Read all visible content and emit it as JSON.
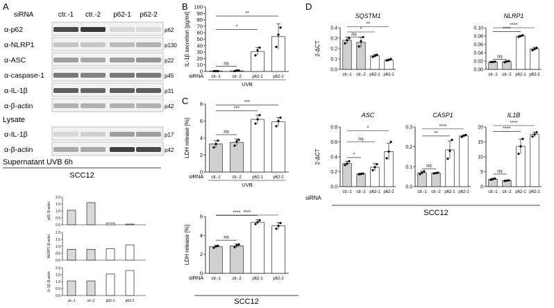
{
  "panels": {
    "A": {
      "letter": "A",
      "header": {
        "prefix": "siRNA",
        "lanes": [
          "ctr.-1",
          "ctr.-2",
          "p62-1",
          "p62-2"
        ]
      },
      "lysate_blots": [
        {
          "label": "α-p62",
          "size": "p62",
          "bands": [
            0.85,
            0.95,
            0.1,
            0.08
          ]
        },
        {
          "label": "α-NLRP1",
          "size": "p130",
          "bands": [
            0.2,
            0.2,
            0.25,
            0.3
          ]
        },
        {
          "label": "α-ASC",
          "size": "p22",
          "bands": [
            0.4,
            0.35,
            0.4,
            0.45
          ]
        },
        {
          "label": "α-caspase-1",
          "size": "p45",
          "bands": [
            0.6,
            0.55,
            0.6,
            0.6
          ]
        },
        {
          "label": "α-IL-1β",
          "size": "p31",
          "bands": [
            0.75,
            0.7,
            0.75,
            0.75
          ]
        },
        {
          "label": "α-β-actin",
          "size": "p42",
          "bands": [
            0.3,
            0.3,
            0.3,
            0.3
          ]
        }
      ],
      "lysate_caption": "Lysate",
      "supernatant_blots": [
        {
          "label": "α-IL-1β",
          "size": "p17",
          "bands": [
            0.1,
            0.15,
            0.4,
            0.4
          ]
        },
        {
          "label": "α-β-actin",
          "size": "p42",
          "bands": [
            0.35,
            0.35,
            0.9,
            0.85
          ]
        }
      ],
      "supernatant_caption": "Supernatant UVB 6h",
      "cell_line": "SCC12",
      "quant_charts": [
        {
          "ylabel": "p62 /β-actin",
          "ylim": [
            0,
            2
          ],
          "ticks": [
            "2.0",
            "1.5",
            "1.0",
            "0.5",
            "0.0"
          ],
          "values": [
            1.05,
            1.6,
            0.12,
            0.05
          ]
        },
        {
          "ylabel": "NLRP1 /β-actin",
          "ylim": [
            0,
            2
          ],
          "ticks": [
            "2.0",
            "1.5",
            "1.0",
            "0.5",
            "0.0"
          ],
          "values": [
            0.78,
            0.78,
            0.82,
            1.1
          ]
        },
        {
          "ylabel": "IL-1β /β-actin",
          "ylim": [
            0,
            2
          ],
          "ticks": [
            "2.0",
            "1.5",
            "1.0",
            "0.5",
            "0.0"
          ],
          "values": [
            1.05,
            1.05,
            1.55,
            1.8
          ]
        }
      ],
      "quant_categories": [
        "ctr.-1",
        "ctr.-2",
        "p62-1",
        "p62-2"
      ]
    },
    "B": {
      "letter": "B"
    },
    "C": {
      "letter": "C"
    },
    "D": {
      "letter": "D",
      "siRNA_label": "siRNA",
      "cell_line": "SCC12"
    }
  },
  "chart_data": [
    {
      "id": "B",
      "type": "bar",
      "ylabel": "IL-1β secretion [pg/ml]",
      "ylim": [
        0,
        100
      ],
      "ticks": [
        0,
        10,
        20,
        30,
        40,
        50,
        60,
        70,
        80,
        90,
        100
      ],
      "categories": [
        "ctr.-1",
        "ctr.-2",
        "p62-1",
        "p62-2"
      ],
      "values": [
        0.5,
        1,
        31,
        54
      ],
      "errors": [
        0.5,
        1,
        6,
        20
      ],
      "points": [
        [
          0.5,
          0.5,
          0.5
        ],
        [
          0.5,
          1.5,
          1.5
        ],
        [
          25,
          33,
          37
        ],
        [
          38,
          57,
          68
        ]
      ],
      "siRNA_label": "siRNA",
      "group_label": "UVB",
      "sig": [
        {
          "from": 0,
          "to": 3,
          "text": "**",
          "y": 86
        },
        {
          "from": 0,
          "to": 2,
          "text": "*",
          "y": 65
        },
        {
          "from": 0,
          "to": 1,
          "text": "ns",
          "y": 8
        }
      ]
    },
    {
      "id": "C1",
      "type": "bar",
      "ylabel": "LDH release [%]",
      "ylim": [
        0,
        8
      ],
      "ticks": [
        0,
        2,
        4,
        6,
        8
      ],
      "categories": [
        "ctr.-1",
        "ctr.-2",
        "p62-1",
        "p62-2"
      ],
      "values": [
        3.3,
        3.5,
        6.2,
        5.9
      ],
      "errors": [
        0.4,
        0.4,
        0.5,
        0.5
      ],
      "points": [
        [
          2.9,
          3.3,
          3.7
        ],
        [
          3.1,
          3.6,
          3.8
        ],
        [
          5.7,
          6.2,
          6.7
        ],
        [
          5.4,
          6.0,
          6.4
        ]
      ],
      "siRNA_label": "siRNA",
      "group_label": "UVB",
      "sig": [
        {
          "from": 0,
          "to": 3,
          "text": "***",
          "y": 7.9
        },
        {
          "from": 0,
          "to": 2,
          "text": "***",
          "y": 7.2
        },
        {
          "from": 0,
          "to": 1,
          "text": "ns",
          "y": 4.4
        }
      ]
    },
    {
      "id": "C2",
      "type": "bar",
      "ylabel": "LDH release [%]",
      "ylim": [
        0,
        6
      ],
      "ticks": [
        0,
        2,
        4,
        6
      ],
      "categories": [
        "ctr.-1",
        "ctr.-2",
        "p62-1",
        "p62-2"
      ],
      "values": [
        2.8,
        2.9,
        5.4,
        5.0
      ],
      "errors": [
        0.15,
        0.2,
        0.25,
        0.35
      ],
      "points": [
        [
          2.7,
          2.85,
          2.9
        ],
        [
          2.75,
          2.95,
          3.05
        ],
        [
          5.2,
          5.4,
          5.6
        ],
        [
          4.7,
          5.0,
          5.3
        ]
      ],
      "siRNA_label": "siRNA",
      "group_label": "",
      "sig": [
        {
          "from": 0,
          "to": 3,
          "text": "****",
          "y": 6.9
        },
        {
          "from": 0,
          "to": 2,
          "text": "****",
          "y": 6.1
        },
        {
          "from": 0,
          "to": 1,
          "text": "ns",
          "y": 3.5
        }
      ]
    },
    {
      "id": "SQSTM1",
      "type": "bar",
      "title": "SQSTM1",
      "ylabel": "2-ΔCT",
      "ylim": [
        0,
        0.4
      ],
      "ticks": [
        "0.0",
        "0.1",
        "0.2",
        "0.3",
        "0.4"
      ],
      "categories": [
        "ctr.-1",
        "ctr.-2",
        "p62-1",
        "p62-2"
      ],
      "values": [
        0.28,
        0.26,
        0.13,
        0.09
      ],
      "errors": [
        0.03,
        0.05,
        0.015,
        0.01
      ],
      "points": [
        [
          0.25,
          0.28,
          0.3
        ],
        [
          0.22,
          0.27,
          0.31
        ],
        [
          0.12,
          0.13,
          0.14
        ],
        [
          0.085,
          0.09,
          0.1
        ]
      ],
      "sig": [
        {
          "from": 0,
          "to": 3,
          "text": "**",
          "y": 0.41
        },
        {
          "from": 0,
          "to": 2,
          "text": "*",
          "y": 0.36
        },
        {
          "from": 0,
          "to": 1,
          "text": "ns",
          "y": 0.31
        }
      ]
    },
    {
      "id": "NLRP1",
      "type": "bar",
      "title": "NLRP1",
      "ylabel": "",
      "ylim": [
        0,
        0.1
      ],
      "ticks": [
        "0.00",
        "0.02",
        "0.04",
        "0.06",
        "0.08",
        "0.10"
      ],
      "categories": [
        "ctr.-1",
        "ctr.-2",
        "p62-1",
        "p62-2"
      ],
      "values": [
        0.018,
        0.019,
        0.08,
        0.049
      ],
      "errors": [
        0.001,
        0.002,
        0.002,
        0.004
      ],
      "points": [
        [
          0.0175,
          0.018,
          0.0185
        ],
        [
          0.017,
          0.019,
          0.02
        ],
        [
          0.078,
          0.08,
          0.082
        ],
        [
          0.046,
          0.049,
          0.052
        ]
      ],
      "sig": [
        {
          "from": 0,
          "to": 3,
          "text": "****",
          "y": 0.1
        },
        {
          "from": 0,
          "to": 2,
          "text": "****",
          "y": 0.091
        },
        {
          "from": 0,
          "to": 1,
          "text": "ns",
          "y": 0.024
        }
      ]
    },
    {
      "id": "ASC",
      "type": "bar",
      "title": "ASC",
      "ylabel": "2-ΔCT",
      "ylim": [
        0,
        0.8
      ],
      "ticks": [
        "0.0",
        "0.2",
        "0.4",
        "0.6",
        "0.8"
      ],
      "categories": [
        "ctr.-1",
        "ctr.-2",
        "p62-1",
        "p62-2"
      ],
      "values": [
        0.31,
        0.17,
        0.26,
        0.47
      ],
      "errors": [
        0.03,
        0.01,
        0.05,
        0.11
      ],
      "points": [
        [
          0.29,
          0.31,
          0.34
        ],
        [
          0.165,
          0.17,
          0.175
        ],
        [
          0.22,
          0.26,
          0.3
        ],
        [
          0.38,
          0.47,
          0.6
        ]
      ],
      "sig": [
        {
          "from": 0,
          "to": 3,
          "text": "*",
          "y": 0.75
        },
        {
          "from": 0,
          "to": 2,
          "text": "ns",
          "y": 0.6
        },
        {
          "from": 0,
          "to": 1,
          "text": "*",
          "y": 0.39
        }
      ]
    },
    {
      "id": "CASP1",
      "type": "bar",
      "title": "CASP1",
      "ylabel": "",
      "ylim": [
        0,
        0.3
      ],
      "ticks": [
        "0.0",
        "0.1",
        "0.2",
        "0.3"
      ],
      "categories": [
        "ctr.-1",
        "ctr.-2",
        "p62-1",
        "p62-2"
      ],
      "values": [
        0.07,
        0.068,
        0.185,
        0.255
      ],
      "errors": [
        0.008,
        0.003,
        0.045,
        0.005
      ],
      "points": [
        [
          0.063,
          0.07,
          0.077
        ],
        [
          0.066,
          0.068,
          0.07
        ],
        [
          0.14,
          0.18,
          0.235
        ],
        [
          0.25,
          0.255,
          0.26
        ]
      ],
      "sig": [
        {
          "from": 0,
          "to": 3,
          "text": "****",
          "y": 0.29
        },
        {
          "from": 0,
          "to": 2,
          "text": "**",
          "y": 0.255
        },
        {
          "from": 0,
          "to": 1,
          "text": "ns",
          "y": 0.09
        }
      ]
    },
    {
      "id": "IL1B",
      "type": "bar",
      "title": "IL1B",
      "ylabel": "",
      "ylim": [
        0,
        20
      ],
      "ticks": [
        "0",
        "5",
        "10",
        "15",
        "20"
      ],
      "categories": [
        "ctr.-1",
        "ctr.-2",
        "p62-1",
        "p62-2"
      ],
      "values": [
        2.5,
        2.0,
        13.5,
        17.5
      ],
      "errors": [
        0.3,
        0.2,
        2.5,
        0.8
      ],
      "points": [
        [
          2.3,
          2.5,
          2.7
        ],
        [
          1.9,
          2.0,
          2.1
        ],
        [
          11.0,
          13.5,
          16.0
        ],
        [
          16.8,
          17.5,
          18.2
        ]
      ],
      "sig": [
        {
          "from": 0,
          "to": 3,
          "text": "****",
          "y": 20.5
        },
        {
          "from": 0,
          "to": 2,
          "text": "****",
          "y": 18.5
        },
        {
          "from": 0,
          "to": 1,
          "text": "ns",
          "y": 4.2
        }
      ]
    }
  ]
}
